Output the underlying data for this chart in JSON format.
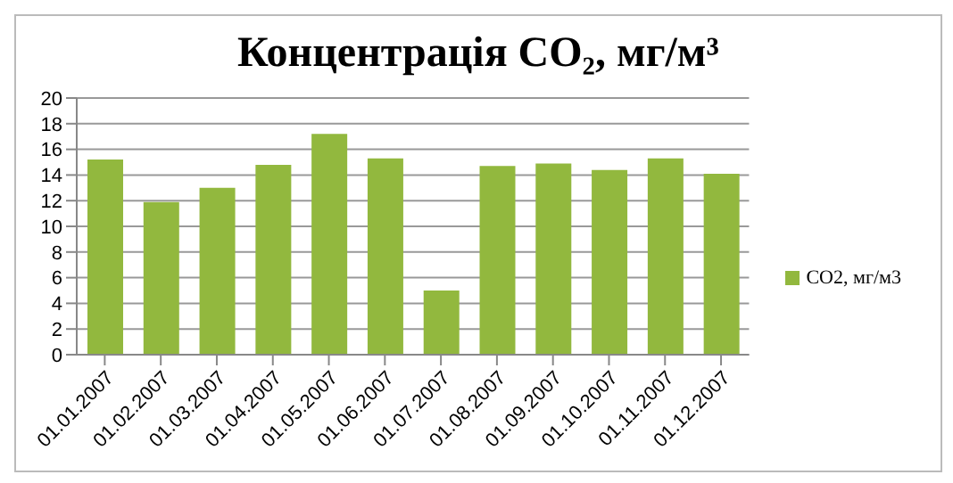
{
  "chart_data": {
    "type": "bar",
    "title": "Концентрація CO₂, мг/м³",
    "categories": [
      "01.01.2007",
      "01.02.2007",
      "01.03.2007",
      "01.04.2007",
      "01.05.2007",
      "01.06.2007",
      "01.07.2007",
      "01.08.2007",
      "01.09.2007",
      "01.10.2007",
      "01.11.2007",
      "01.12.2007"
    ],
    "series": [
      {
        "name": "CO2, мг/м3",
        "color": "#92b83e",
        "values": [
          15.2,
          11.9,
          13.0,
          14.8,
          17.2,
          15.3,
          5.0,
          14.7,
          14.9,
          14.4,
          15.3,
          14.1
        ]
      }
    ],
    "ylim": [
      0,
      20
    ],
    "yticks": [
      0,
      2,
      4,
      6,
      8,
      10,
      12,
      14,
      16,
      18,
      20
    ],
    "grid": "y",
    "legend": "right"
  }
}
